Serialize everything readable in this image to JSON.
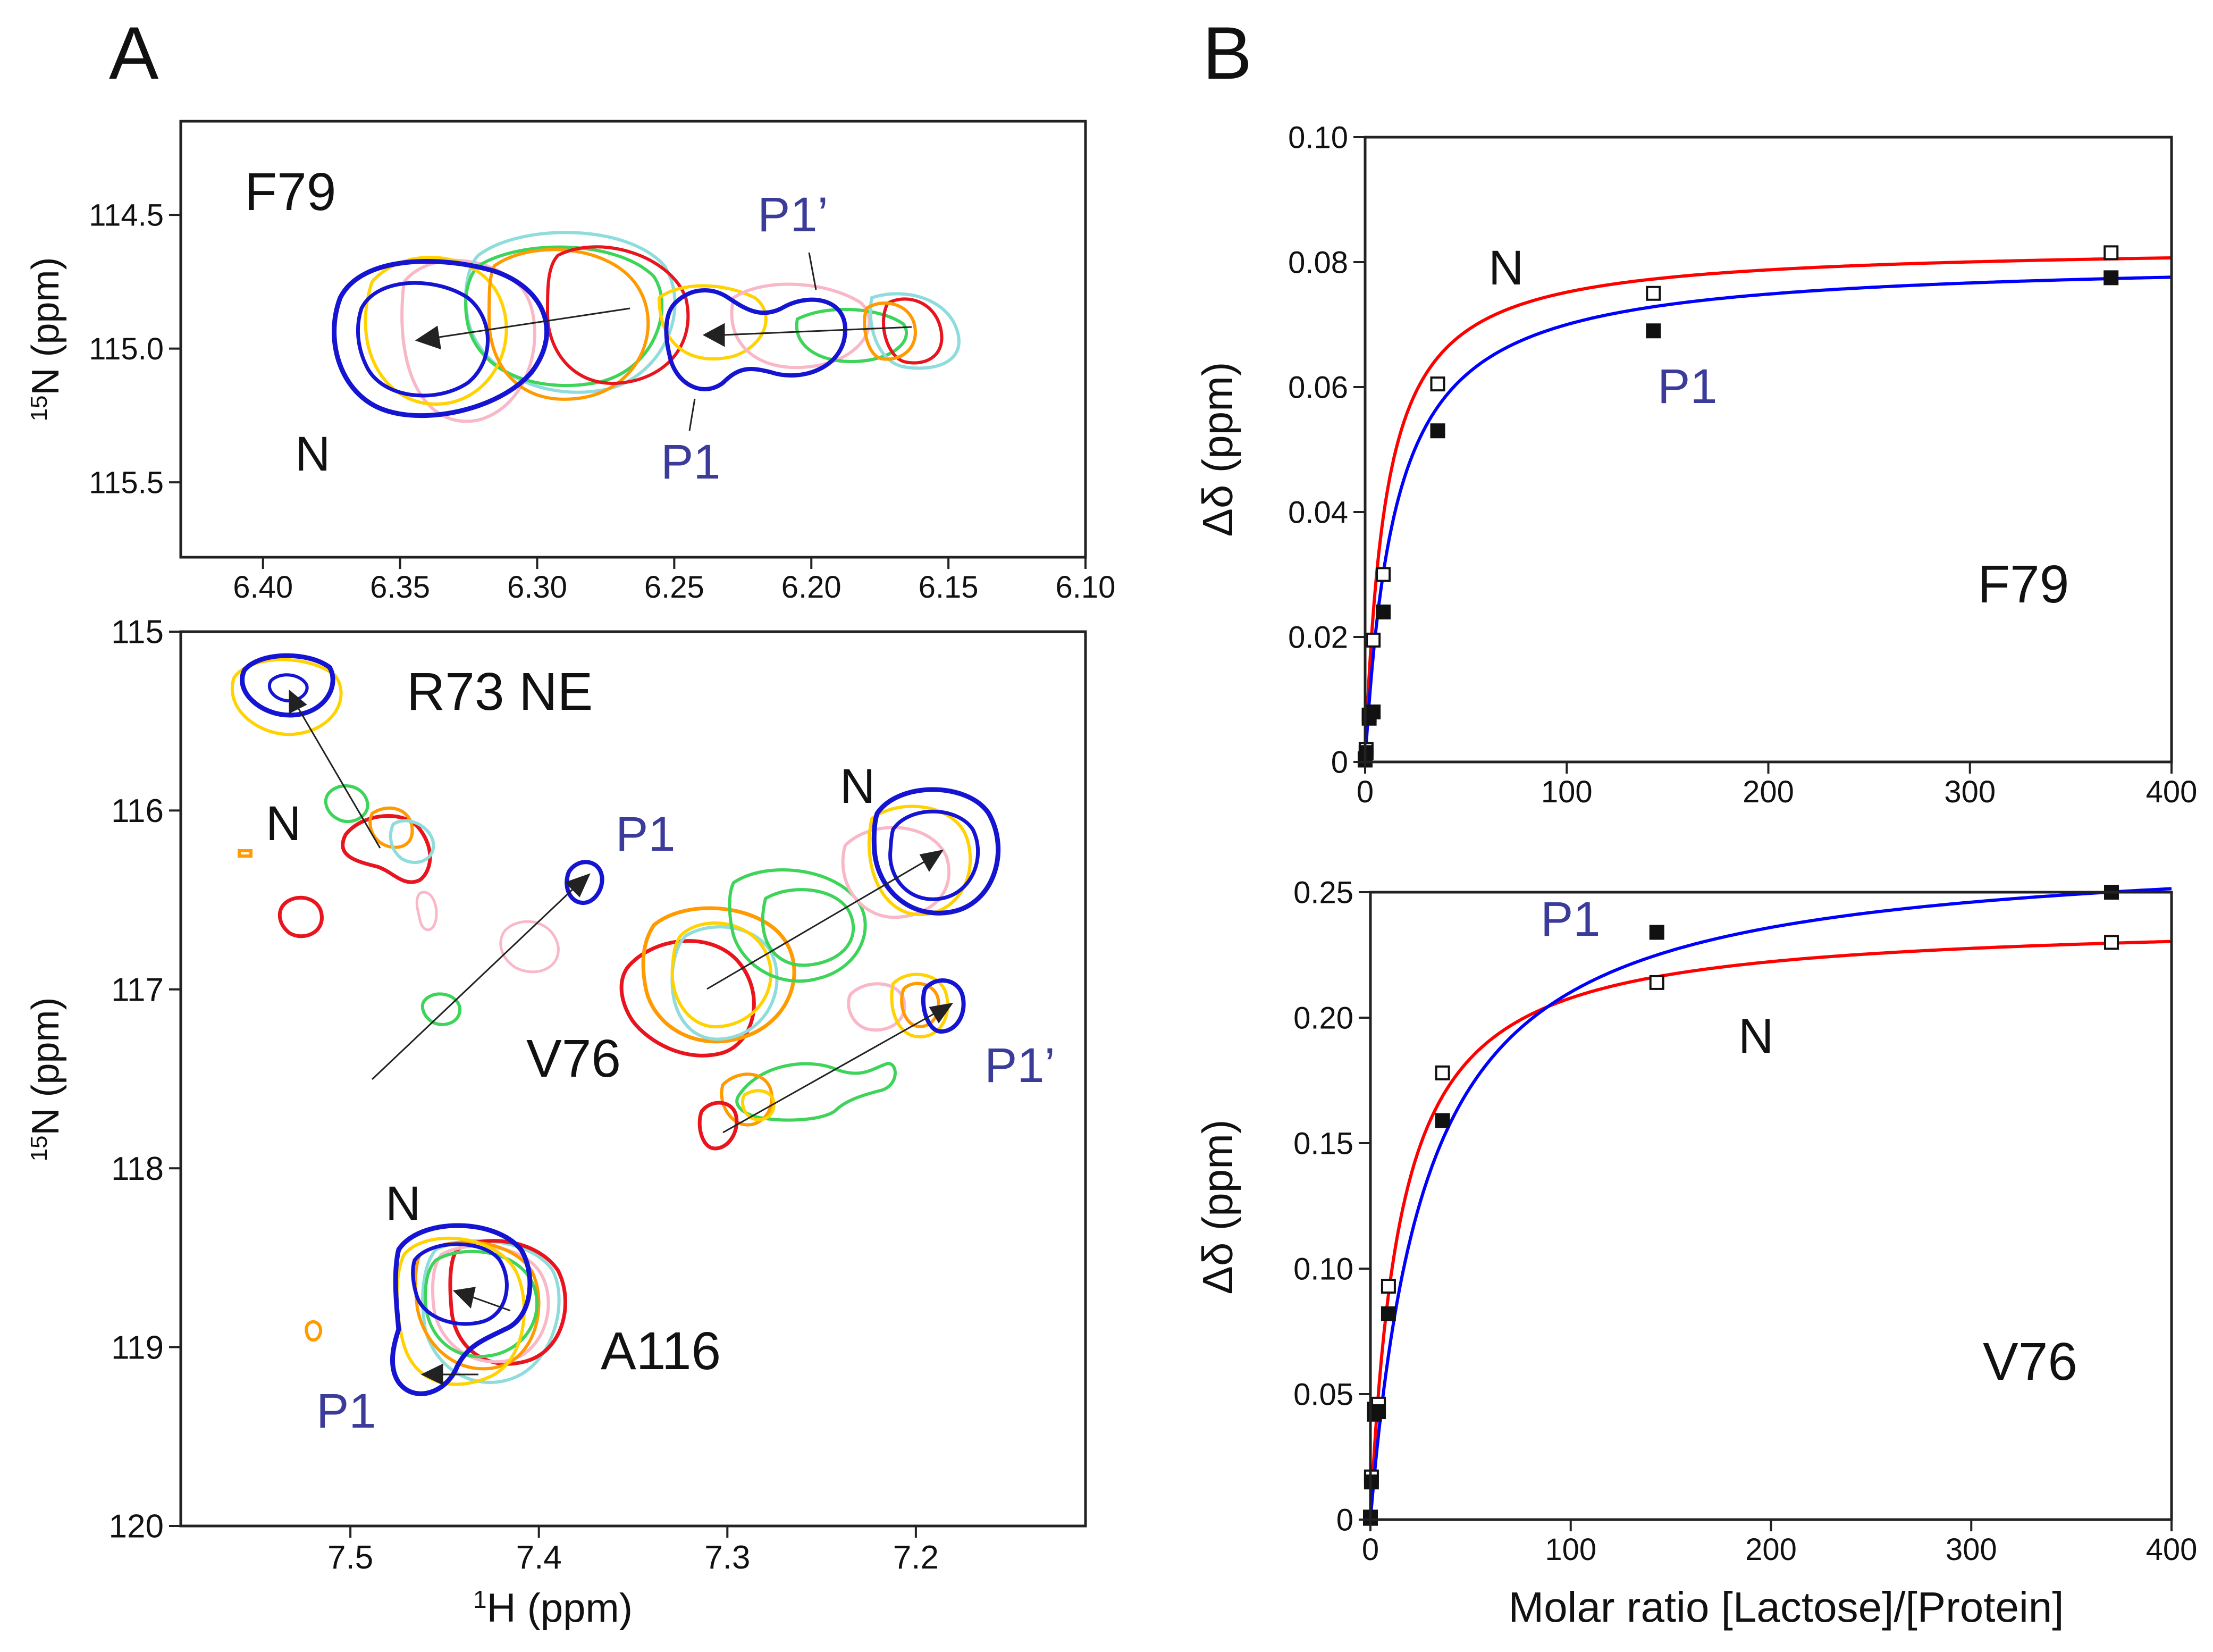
{
  "colors": {
    "n_curve": "#ff0000",
    "p1_curve": "#0000ff",
    "label_blue": "#3b3b9a",
    "contour_red": "#e8141e",
    "contour_orange": "#ff9a00",
    "contour_yellow": "#ffd200",
    "contour_green": "#3ed45a",
    "contour_cyan": "#8fdcdc",
    "contour_pink": "#f8b8c8",
    "contour_blue": "#1414d2"
  },
  "panelA": {
    "letter": "A",
    "top": {
      "xlim": [
        6.43,
        6.1
      ],
      "ylim": [
        114.15,
        115.78
      ],
      "xticks": [
        "6.40",
        "6.35",
        "6.30",
        "6.25",
        "6.20",
        "6.15",
        "6.10"
      ],
      "xtick_values": [
        6.4,
        6.35,
        6.3,
        6.25,
        6.2,
        6.15,
        6.1
      ],
      "yticks": [
        "114.5",
        "115.0",
        "115.5"
      ],
      "ytick_values": [
        114.5,
        115.0,
        115.5
      ],
      "ylabel_sup": "15",
      "ylabel_main": "N (ppm)",
      "labels": {
        "residue": "F79",
        "n": "N",
        "p1": "P1",
        "p1p": "P1’"
      }
    },
    "bottom": {
      "xlim": [
        7.59,
        7.11
      ],
      "ylim": [
        115.0,
        120.0
      ],
      "xticks": [
        "7.5",
        "7.4",
        "7.3",
        "7.2"
      ],
      "xtick_values": [
        7.5,
        7.4,
        7.3,
        7.2
      ],
      "yticks": [
        "115",
        "116",
        "117",
        "118",
        "119",
        "120"
      ],
      "ytick_values": [
        115,
        116,
        117,
        118,
        119,
        120
      ],
      "ylabel_sup": "15",
      "ylabel_main": "N (ppm)",
      "xlabel_sup": "1",
      "xlabel_main": "H (ppm)",
      "labels": {
        "r73": "R73 NE",
        "v76": "V76",
        "a116": "A116",
        "n1": "N",
        "n2": "N",
        "n3": "N",
        "p1a": "P1",
        "p1b": "P1",
        "p1p": "P1’"
      }
    }
  },
  "panelB": {
    "letter": "B",
    "xlabel": "Molar ratio [Lactose]/[Protein]",
    "ylabel": "Δδ (ppm)",
    "chart_data": [
      {
        "type": "scatter",
        "title": "F79",
        "xlim": [
          0,
          400
        ],
        "ylim": [
          0,
          0.1
        ],
        "xticks": [
          "0",
          "100",
          "200",
          "300",
          "400"
        ],
        "xtick_values": [
          0,
          100,
          200,
          300,
          400
        ],
        "yticks": [
          "0",
          "0.02",
          "0.04",
          "0.06",
          "0.08",
          "0.10"
        ],
        "ytick_values": [
          0,
          0.02,
          0.04,
          0.06,
          0.08,
          0.1
        ],
        "series": [
          {
            "name": "N",
            "marker": "open-square",
            "curve_color": "#ff0000",
            "fit": {
              "dmax": 0.0827,
              "kd": 10.0
            },
            "x": [
              0,
              0.5,
              2,
              4,
              9,
              36,
              143,
              370
            ],
            "y": [
              0.0005,
              0.002,
              0.0075,
              0.0195,
              0.03,
              0.0605,
              0.075,
              0.0815
            ]
          },
          {
            "name": "P1",
            "marker": "filled-square",
            "curve_color": "#0000ff",
            "fit": {
              "dmax": 0.0805,
              "kd": 15.0
            },
            "x": [
              0,
              0.5,
              2,
              4,
              9,
              36,
              143,
              370
            ],
            "y": [
              0.0003,
              0.0015,
              0.007,
              0.008,
              0.024,
              0.053,
              0.069,
              0.0775
            ]
          }
        ],
        "annotations": {
          "n": "N",
          "p1": "P1"
        }
      },
      {
        "type": "scatter",
        "title": "V76",
        "xlim": [
          0,
          400
        ],
        "ylim": [
          0,
          0.25
        ],
        "xticks": [
          "0",
          "100",
          "200",
          "300",
          "400"
        ],
        "xtick_values": [
          0,
          100,
          200,
          300,
          400
        ],
        "yticks": [
          "0",
          "0.05",
          "0.10",
          "0.15",
          "0.20",
          "0.25"
        ],
        "ytick_values": [
          0,
          0.05,
          0.1,
          0.15,
          0.2,
          0.25
        ],
        "series": [
          {
            "name": "N",
            "marker": "open-square",
            "curve_color": "#ff0000",
            "fit": {
              "dmax": 0.239,
              "kd": 15.0
            },
            "x": [
              0,
              0.5,
              2,
              4,
              9,
              36,
              143,
              370
            ],
            "y": [
              0.001,
              0.017,
              0.044,
              0.046,
              0.093,
              0.178,
              0.214,
              0.23
            ]
          },
          {
            "name": "P1",
            "marker": "filled-square",
            "curve_color": "#0000ff",
            "fit": {
              "dmax": 0.269,
              "kd": 28.0
            },
            "x": [
              0,
              0.5,
              2,
              4,
              9,
              36,
              143,
              370
            ],
            "y": [
              0.0005,
              0.015,
              0.042,
              0.043,
              0.082,
              0.159,
              0.234,
              0.25
            ]
          }
        ],
        "annotations": {
          "n": "N",
          "p1": "P1"
        }
      }
    ]
  }
}
